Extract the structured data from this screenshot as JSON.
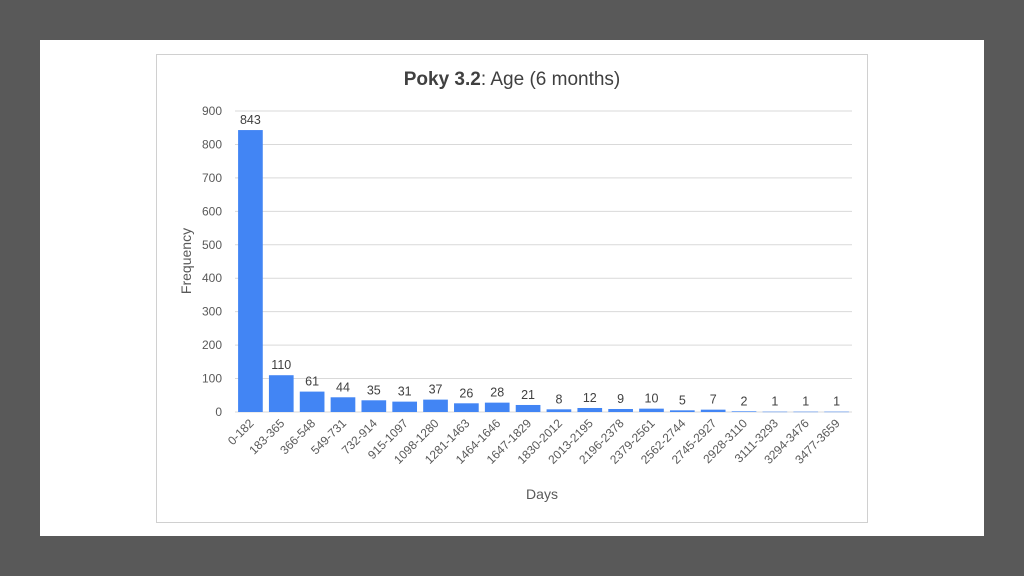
{
  "chart_data": {
    "type": "bar",
    "title_bold": "Poky 3.2",
    "title_rest": ": Age (6 months)",
    "xlabel": "Days",
    "ylabel": "Frequency",
    "ylim": [
      0,
      900
    ],
    "yticks": [
      "0",
      "100",
      "200",
      "300",
      "400",
      "500",
      "600",
      "700",
      "800",
      "900"
    ],
    "grid": true,
    "legend": "none",
    "bar_color": "#4285f4",
    "grid_color": "#d9d9d9",
    "categories": [
      "0-182",
      "183-365",
      "366-548",
      "549-731",
      "732-914",
      "915-1097",
      "1098-1280",
      "1281-1463",
      "1464-1646",
      "1647-1829",
      "1830-2012",
      "2013-2195",
      "2196-2378",
      "2379-2561",
      "2562-2744",
      "2745-2927",
      "2928-3110",
      "3111-3293",
      "3294-3476",
      "3477-3659"
    ],
    "values": [
      843,
      110,
      61,
      44,
      35,
      31,
      37,
      26,
      28,
      21,
      8,
      12,
      9,
      10,
      5,
      7,
      2,
      1,
      1,
      1
    ]
  }
}
